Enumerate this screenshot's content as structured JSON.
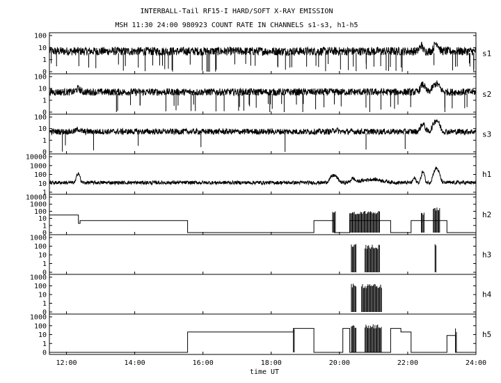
{
  "chart_data": {
    "type": "line",
    "title": "INTERBALL-Tail RF15-I HARD/SOFT X-RAY EMISSION",
    "subtitle": "MSH 11:30 24:00 980923  COUNT RATE IN CHANNELS s1-s3, h1-h5",
    "xlabel": "time UT",
    "xlim": [
      11.5,
      24.0
    ],
    "x_ticks": [
      "12:00",
      "14:00",
      "16:00",
      "18:00",
      "20:00",
      "22:00",
      "24:00"
    ],
    "x_tick_values": [
      12,
      14,
      16,
      18,
      20,
      22,
      24
    ],
    "y_scale": "log",
    "panels": [
      {
        "name": "s1",
        "ylim_decades": 2,
        "y_ticks": [
          "100",
          "10",
          "1",
          "0"
        ],
        "baseline": 5,
        "noise": 0.35,
        "dropouts": 60,
        "features": [
          {
            "t": 22.4,
            "peak": 15,
            "width": 0.06
          },
          {
            "t": 22.85,
            "peak": 25,
            "width": 0.08
          }
        ]
      },
      {
        "name": "s2",
        "ylim_decades": 2,
        "y_ticks": [
          "100",
          "10",
          "1",
          "0"
        ],
        "baseline": 5,
        "noise": 0.3,
        "dropouts": 45,
        "features": [
          {
            "t": 12.35,
            "peak": 10,
            "width": 0.08
          },
          {
            "t": 22.45,
            "peak": 22,
            "width": 0.08
          },
          {
            "t": 22.85,
            "peak": 25,
            "width": 0.12
          }
        ]
      },
      {
        "name": "s3",
        "ylim_decades": 2,
        "y_ticks": [
          "100",
          "10",
          "1",
          "0"
        ],
        "baseline": 5.5,
        "noise": 0.25,
        "dropouts": 8,
        "features": [
          {
            "t": 12.35,
            "peak": 9,
            "width": 0.08
          },
          {
            "t": 19.9,
            "peak": 8,
            "width": 0.08
          },
          {
            "t": 22.45,
            "peak": 25,
            "width": 0.08
          },
          {
            "t": 22.85,
            "peak": 55,
            "width": 0.1
          }
        ]
      },
      {
        "name": "h1",
        "ylim_decades": 4,
        "y_ticks": [
          "10000",
          "1000",
          "100",
          "10",
          "1"
        ],
        "baseline": 12,
        "noise": 0.2,
        "dropouts": 0,
        "features": [
          {
            "t": 12.35,
            "peak": 150,
            "width": 0.05
          },
          {
            "t": 19.85,
            "peak": 80,
            "width": 0.12
          },
          {
            "t": 20.4,
            "peak": 35,
            "width": 0.08
          },
          {
            "t": 21.0,
            "peak": 28,
            "width": 0.4
          },
          {
            "t": 22.2,
            "peak": 40,
            "width": 0.05
          },
          {
            "t": 22.45,
            "peak": 200,
            "width": 0.05
          },
          {
            "t": 22.85,
            "peak": 500,
            "width": 0.08
          }
        ]
      },
      {
        "name": "h2",
        "ylim_decades": 4,
        "y_ticks": [
          "10000",
          "1000",
          "100",
          "10",
          "1",
          "0"
        ],
        "steps": [
          [
            11.5,
            30
          ],
          [
            12.35,
            2
          ],
          [
            12.4,
            5
          ],
          [
            15.55,
            0
          ],
          [
            19.25,
            5
          ],
          [
            19.85,
            0
          ],
          [
            20.3,
            5
          ],
          [
            21.5,
            0
          ],
          [
            22.1,
            5
          ],
          [
            23.15,
            0
          ],
          [
            24.0,
            0
          ]
        ],
        "bursts": [
          {
            "t0": 19.8,
            "t1": 19.9,
            "top": 100
          },
          {
            "t0": 20.3,
            "t1": 21.2,
            "top": 120
          },
          {
            "t0": 22.4,
            "t1": 22.5,
            "top": 80
          },
          {
            "t0": 22.75,
            "t1": 22.95,
            "top": 400
          }
        ]
      },
      {
        "name": "h3",
        "ylim_decades": 3,
        "y_ticks": [
          "1000",
          "100",
          "10",
          "1",
          "0"
        ],
        "steps": [],
        "bursts": [
          {
            "t0": 20.35,
            "t1": 20.5,
            "top": 200
          },
          {
            "t0": 20.75,
            "t1": 21.2,
            "top": 150
          },
          {
            "t0": 22.8,
            "t1": 22.83,
            "top": 300
          }
        ]
      },
      {
        "name": "h4",
        "ylim_decades": 3,
        "y_ticks": [
          "1000",
          "100",
          "10",
          "1",
          "0"
        ],
        "steps": [],
        "bursts": [
          {
            "t0": 20.35,
            "t1": 20.5,
            "top": 200
          },
          {
            "t0": 20.65,
            "t1": 21.25,
            "top": 160
          }
        ]
      },
      {
        "name": "h5",
        "ylim_decades": 3,
        "y_ticks": [
          "1000",
          "100",
          "10",
          "1",
          "0"
        ],
        "steps": [
          [
            11.5,
            0
          ],
          [
            15.55,
            20
          ],
          [
            18.65,
            50
          ],
          [
            19.25,
            0
          ],
          [
            20.1,
            50
          ],
          [
            20.3,
            0
          ],
          [
            21.5,
            50
          ],
          [
            21.8,
            20
          ],
          [
            22.1,
            0
          ],
          [
            23.15,
            8
          ],
          [
            23.4,
            0
          ],
          [
            24.0,
            0
          ]
        ],
        "bursts": [
          {
            "t0": 18.65,
            "t1": 18.7,
            "top": 60
          },
          {
            "t0": 20.35,
            "t1": 20.5,
            "top": 120
          },
          {
            "t0": 20.75,
            "t1": 21.25,
            "top": 150
          },
          {
            "t0": 23.4,
            "t1": 23.43,
            "top": 50
          }
        ]
      }
    ]
  }
}
